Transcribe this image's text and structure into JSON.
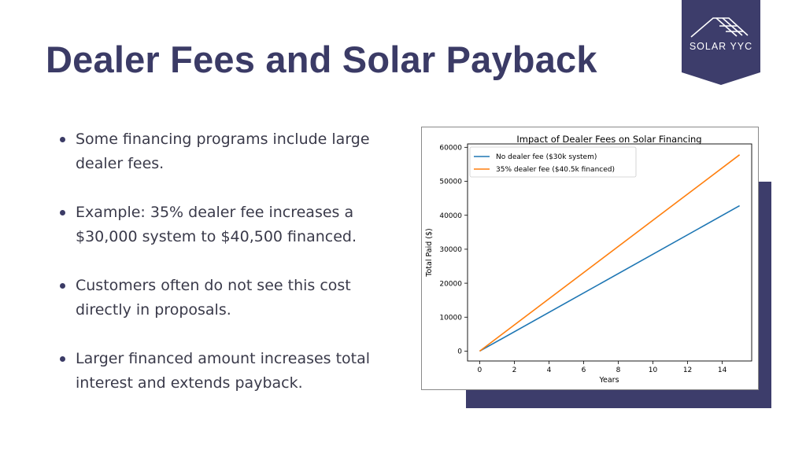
{
  "slide": {
    "title": "Dealer Fees and Solar Payback",
    "logo_text": "SOLAR YYC",
    "bullets": [
      "Some financing programs include large dealer fees.",
      "Example: 35% dealer fee increases a $30,000 system to $40,500 financed.",
      "Customers often do not see this cost directly in proposals.",
      "Larger financed amount increases total interest and extends payback."
    ]
  },
  "colors": {
    "accent": "#3b3b66",
    "series_blue": "#1f77b4",
    "series_orange": "#ff7f0e"
  },
  "chart_data": {
    "type": "line",
    "title": "Impact of Dealer Fees on Solar Financing",
    "xlabel": "Years",
    "ylabel": "Total Paid ($)",
    "xlim": [
      -0.7,
      15.7
    ],
    "ylim": [
      -2900,
      61000
    ],
    "xticks": [
      0,
      2,
      4,
      6,
      8,
      10,
      12,
      14
    ],
    "yticks": [
      0,
      10000,
      20000,
      30000,
      40000,
      50000,
      60000
    ],
    "legend_position": "top-left",
    "grid": false,
    "series": [
      {
        "name": "No dealer fee ($30k system)",
        "color": "#1f77b4",
        "x": [
          0,
          15
        ],
        "y": [
          0,
          42800
        ]
      },
      {
        "name": "35% dealer fee ($40.5k financed)",
        "color": "#ff7f0e",
        "x": [
          0,
          15
        ],
        "y": [
          0,
          57800
        ]
      }
    ]
  }
}
